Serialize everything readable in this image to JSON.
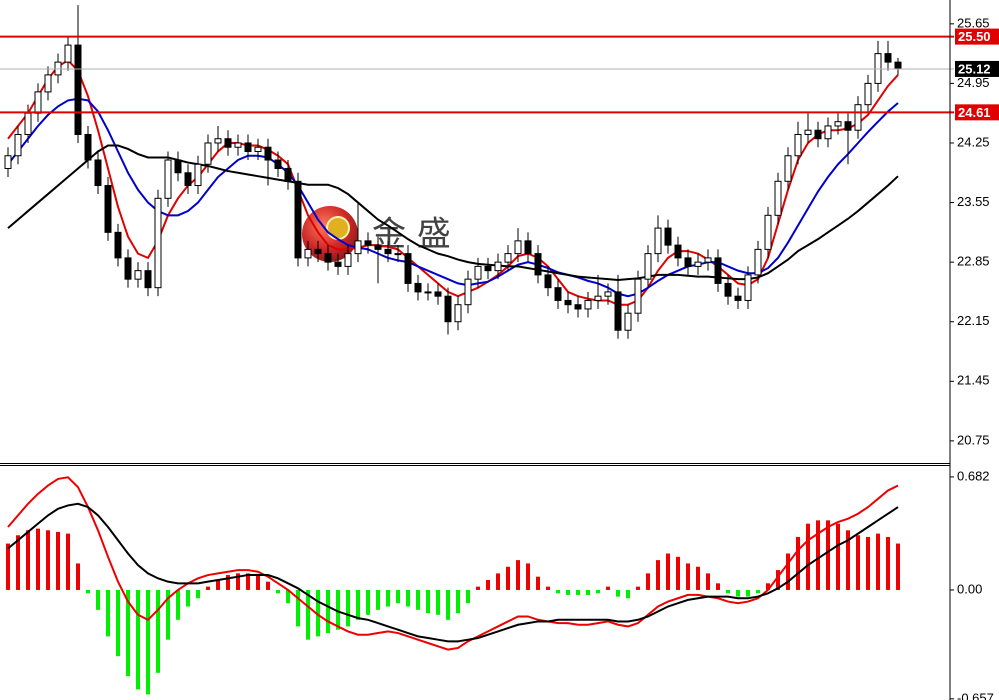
{
  "chart_data": [
    {
      "type": "candlestick",
      "open": [
        23.95,
        24.1,
        24.35,
        24.6,
        24.85,
        25.05,
        25.2,
        25.4,
        24.35,
        24.05,
        23.75,
        23.2,
        22.9,
        22.65,
        22.75,
        22.55,
        23.6,
        24.05,
        23.9,
        23.75,
        24.0,
        24.25,
        24.3,
        24.2,
        24.25,
        24.15,
        24.2,
        24.05,
        23.95,
        23.8,
        22.9,
        23.0,
        22.95,
        22.85,
        22.8,
        22.95,
        23.1,
        23.05,
        23.0,
        22.95,
        22.95,
        22.6,
        22.5,
        22.5,
        22.45,
        22.15,
        22.35,
        22.65,
        22.8,
        22.75,
        22.85,
        22.95,
        23.1,
        22.95,
        22.7,
        22.55,
        22.4,
        22.35,
        22.3,
        22.4,
        22.45,
        22.5,
        22.05,
        22.25,
        22.65,
        22.95,
        23.25,
        23.05,
        22.9,
        22.8,
        22.85,
        22.9,
        22.6,
        22.45,
        22.4,
        22.7,
        23.0,
        23.4,
        23.8,
        24.1,
        24.35,
        24.4,
        24.3,
        24.45,
        24.5,
        24.4,
        24.7,
        24.95,
        25.3,
        25.2
      ],
      "high": [
        24.2,
        24.45,
        24.7,
        24.95,
        25.15,
        25.3,
        25.5,
        25.87,
        24.45,
        24.15,
        23.85,
        23.3,
        23.0,
        22.85,
        22.85,
        23.7,
        24.15,
        24.15,
        24.0,
        24.1,
        24.35,
        24.45,
        24.4,
        24.35,
        24.35,
        24.3,
        24.3,
        24.15,
        24.05,
        23.9,
        23.1,
        23.1,
        23.05,
        22.95,
        23.05,
        23.55,
        23.2,
        23.15,
        23.1,
        23.05,
        23.05,
        22.7,
        22.6,
        22.6,
        22.55,
        22.45,
        22.75,
        22.9,
        22.9,
        22.95,
        23.05,
        23.25,
        23.2,
        23.05,
        22.8,
        22.65,
        22.5,
        22.45,
        22.5,
        22.7,
        22.6,
        22.7,
        22.35,
        22.75,
        23.05,
        23.4,
        23.35,
        23.15,
        23.0,
        22.95,
        23.0,
        23.0,
        22.7,
        22.55,
        22.8,
        23.1,
        23.5,
        23.9,
        24.2,
        24.5,
        24.6,
        24.5,
        24.55,
        24.6,
        24.6,
        24.8,
        25.05,
        25.45,
        25.45,
        25.25
      ],
      "low": [
        23.85,
        24.0,
        24.25,
        24.5,
        24.75,
        24.95,
        25.1,
        24.25,
        23.95,
        23.65,
        23.1,
        22.8,
        22.55,
        22.55,
        22.45,
        22.45,
        23.5,
        23.8,
        23.65,
        23.65,
        23.9,
        24.15,
        24.1,
        24.1,
        24.05,
        24.05,
        23.75,
        23.85,
        23.7,
        22.8,
        22.8,
        22.85,
        22.75,
        22.7,
        22.7,
        22.85,
        22.95,
        22.6,
        22.85,
        22.85,
        22.5,
        22.4,
        22.4,
        22.35,
        22.0,
        22.05,
        22.25,
        22.55,
        22.65,
        22.65,
        22.75,
        22.85,
        22.85,
        22.6,
        22.45,
        22.3,
        22.25,
        22.2,
        22.2,
        22.3,
        22.35,
        21.95,
        21.95,
        22.15,
        22.55,
        22.85,
        22.95,
        22.8,
        22.7,
        22.7,
        22.75,
        22.5,
        22.35,
        22.3,
        22.3,
        22.6,
        22.9,
        23.3,
        23.7,
        24.0,
        24.25,
        24.2,
        24.2,
        24.35,
        24.0,
        24.3,
        24.6,
        24.85,
        25.1,
        25.05
      ],
      "close": [
        24.1,
        24.35,
        24.6,
        24.85,
        25.05,
        25.2,
        25.4,
        24.35,
        24.05,
        23.75,
        23.2,
        22.9,
        22.65,
        22.75,
        22.55,
        23.6,
        24.05,
        23.9,
        23.75,
        24.0,
        24.25,
        24.3,
        24.2,
        24.25,
        24.15,
        24.2,
        24.05,
        23.95,
        23.8,
        22.9,
        23.0,
        22.95,
        22.85,
        22.8,
        22.95,
        23.1,
        23.05,
        23.0,
        22.95,
        22.95,
        22.6,
        22.5,
        22.5,
        22.45,
        22.15,
        22.35,
        22.65,
        22.8,
        22.75,
        22.85,
        22.95,
        23.1,
        22.95,
        22.7,
        22.55,
        22.4,
        22.35,
        22.3,
        22.4,
        22.45,
        22.5,
        22.05,
        22.25,
        22.65,
        22.95,
        23.25,
        23.05,
        22.9,
        22.8,
        22.85,
        22.9,
        22.6,
        22.45,
        22.4,
        22.7,
        23.0,
        23.4,
        23.8,
        24.1,
        24.35,
        24.4,
        24.3,
        24.45,
        24.5,
        24.4,
        24.7,
        24.95,
        25.3,
        25.2,
        25.12
      ],
      "up_color": "#ffffff",
      "down_color": "#000000",
      "overlays": [
        {
          "color": "#e00000",
          "values": [
            24.3,
            24.45,
            24.6,
            24.8,
            25.0,
            25.15,
            25.22,
            25.1,
            24.8,
            24.4,
            23.95,
            23.5,
            23.15,
            22.95,
            22.9,
            23.1,
            23.4,
            23.6,
            23.75,
            23.85,
            24.0,
            24.15,
            24.25,
            24.25,
            24.22,
            24.22,
            24.17,
            24.1,
            24.0,
            23.7,
            23.4,
            23.2,
            23.05,
            23.0,
            23.0,
            23.02,
            23.05,
            23.05,
            23.03,
            23.0,
            22.9,
            22.8,
            22.7,
            22.6,
            22.5,
            22.45,
            22.5,
            22.55,
            22.62,
            22.7,
            22.8,
            22.92,
            22.95,
            22.9,
            22.8,
            22.65,
            22.5,
            22.45,
            22.42,
            22.4,
            22.4,
            22.35,
            22.35,
            22.4,
            22.55,
            22.75,
            22.9,
            22.98,
            22.98,
            22.95,
            22.88,
            22.8,
            22.7,
            22.6,
            22.58,
            22.65,
            22.9,
            23.3,
            23.7,
            24.05,
            24.25,
            24.35,
            24.4,
            24.4,
            24.42,
            24.48,
            24.58,
            24.75,
            24.92,
            25.05
          ]
        },
        {
          "color": "#0000cc",
          "values": [
            24.0,
            24.15,
            24.3,
            24.45,
            24.58,
            24.68,
            24.75,
            24.77,
            24.75,
            24.62,
            24.4,
            24.15,
            23.9,
            23.7,
            23.55,
            23.45,
            23.4,
            23.4,
            23.45,
            23.55,
            23.7,
            23.85,
            23.95,
            24.05,
            24.1,
            24.1,
            24.08,
            24.0,
            23.9,
            23.75,
            23.55,
            23.35,
            23.2,
            23.12,
            23.05,
            23.02,
            23.0,
            22.95,
            22.9,
            22.87,
            22.85,
            22.8,
            22.75,
            22.7,
            22.65,
            22.6,
            22.58,
            22.6,
            22.62,
            22.68,
            22.75,
            22.82,
            22.85,
            22.82,
            22.78,
            22.73,
            22.7,
            22.67,
            22.63,
            22.6,
            22.55,
            22.48,
            22.45,
            22.48,
            22.55,
            22.63,
            22.7,
            22.75,
            22.8,
            22.82,
            22.85,
            22.85,
            22.8,
            22.75,
            22.72,
            22.72,
            22.78,
            22.9,
            23.08,
            23.28,
            23.48,
            23.68,
            23.85,
            24.0,
            24.12,
            24.25,
            24.38,
            24.5,
            24.62,
            24.72
          ]
        },
        {
          "color": "#000000",
          "values": [
            23.25,
            23.35,
            23.45,
            23.55,
            23.65,
            23.75,
            23.85,
            23.95,
            24.05,
            24.15,
            24.22,
            24.22,
            24.18,
            24.12,
            24.08,
            24.08,
            24.08,
            24.05,
            24.02,
            24.0,
            23.98,
            23.95,
            23.92,
            23.9,
            23.88,
            23.86,
            23.84,
            23.82,
            23.8,
            23.78,
            23.76,
            23.76,
            23.76,
            23.72,
            23.65,
            23.55,
            23.45,
            23.35,
            23.28,
            23.2,
            23.12,
            23.05,
            23.0,
            22.95,
            22.92,
            22.88,
            22.85,
            22.83,
            22.82,
            22.81,
            22.8,
            22.8,
            22.78,
            22.76,
            22.74,
            22.72,
            22.7,
            22.68,
            22.67,
            22.66,
            22.65,
            22.64,
            22.65,
            22.66,
            22.68,
            22.7,
            22.7,
            22.7,
            22.69,
            22.68,
            22.68,
            22.67,
            22.66,
            22.65,
            22.65,
            22.67,
            22.72,
            22.8,
            22.88,
            22.98,
            23.05,
            23.12,
            23.2,
            23.28,
            23.36,
            23.45,
            23.55,
            23.65,
            23.75,
            23.86
          ]
        }
      ],
      "ylim": [
        20.49,
        25.93
      ],
      "yticks": [
        25.65,
        24.95,
        24.25,
        23.55,
        22.85,
        22.15,
        21.45,
        20.75
      ],
      "price_lines": [
        {
          "value": 25.5,
          "label": "25.50",
          "color": "#e00000"
        },
        {
          "value": 25.12,
          "color": "#000000"
        },
        {
          "value": 24.61,
          "color": "#e00000"
        }
      ],
      "watermark": "金 盛"
    },
    {
      "type": "macd",
      "histogram": {
        "up_color": "#ee0000",
        "down_color": "#00ee00",
        "values": [
          0.28,
          0.33,
          0.36,
          0.37,
          0.36,
          0.35,
          0.34,
          0.16,
          -0.02,
          -0.12,
          -0.28,
          -0.4,
          -0.52,
          -0.6,
          -0.63,
          -0.5,
          -0.3,
          -0.18,
          -0.1,
          -0.05,
          0.02,
          0.06,
          0.09,
          0.1,
          0.1,
          0.09,
          0.05,
          -0.02,
          -0.08,
          -0.22,
          -0.3,
          -0.28,
          -0.26,
          -0.24,
          -0.22,
          -0.18,
          -0.15,
          -0.12,
          -0.1,
          -0.08,
          -0.1,
          -0.12,
          -0.14,
          -0.15,
          -0.18,
          -0.14,
          -0.08,
          0.02,
          0.06,
          0.1,
          0.14,
          0.18,
          0.16,
          0.08,
          0.02,
          -0.02,
          -0.03,
          -0.03,
          -0.03,
          -0.02,
          0.02,
          -0.04,
          -0.05,
          0.02,
          0.1,
          0.18,
          0.22,
          0.2,
          0.16,
          0.14,
          0.1,
          0.04,
          -0.02,
          -0.04,
          -0.04,
          -0.02,
          0.04,
          0.12,
          0.22,
          0.32,
          0.4,
          0.42,
          0.42,
          0.4,
          0.36,
          0.33,
          0.32,
          0.34,
          0.32,
          0.28
        ]
      },
      "lines": [
        {
          "color": "#ee0000",
          "values": [
            0.38,
            0.45,
            0.52,
            0.58,
            0.63,
            0.67,
            0.68,
            0.62,
            0.5,
            0.36,
            0.2,
            0.05,
            -0.07,
            -0.15,
            -0.18,
            -0.12,
            -0.05,
            0.0,
            0.04,
            0.07,
            0.09,
            0.1,
            0.11,
            0.12,
            0.12,
            0.11,
            0.08,
            0.04,
            0.0,
            -0.05,
            -0.1,
            -0.15,
            -0.19,
            -0.22,
            -0.25,
            -0.27,
            -0.27,
            -0.26,
            -0.25,
            -0.26,
            -0.28,
            -0.3,
            -0.32,
            -0.34,
            -0.36,
            -0.35,
            -0.31,
            -0.28,
            -0.25,
            -0.22,
            -0.19,
            -0.16,
            -0.16,
            -0.18,
            -0.19,
            -0.2,
            -0.2,
            -0.21,
            -0.21,
            -0.2,
            -0.19,
            -0.21,
            -0.22,
            -0.2,
            -0.15,
            -0.1,
            -0.07,
            -0.05,
            -0.03,
            -0.03,
            -0.04,
            -0.05,
            -0.07,
            -0.08,
            -0.07,
            -0.05,
            0.0,
            0.08,
            0.16,
            0.24,
            0.3,
            0.34,
            0.38,
            0.41,
            0.43,
            0.46,
            0.5,
            0.55,
            0.6,
            0.63
          ]
        },
        {
          "color": "#000000",
          "values": [
            0.25,
            0.3,
            0.35,
            0.4,
            0.45,
            0.49,
            0.51,
            0.52,
            0.5,
            0.45,
            0.38,
            0.3,
            0.22,
            0.15,
            0.1,
            0.07,
            0.05,
            0.04,
            0.04,
            0.04,
            0.05,
            0.06,
            0.07,
            0.08,
            0.09,
            0.09,
            0.09,
            0.07,
            0.04,
            0.01,
            -0.03,
            -0.07,
            -0.1,
            -0.13,
            -0.15,
            -0.17,
            -0.18,
            -0.2,
            -0.22,
            -0.24,
            -0.26,
            -0.28,
            -0.29,
            -0.3,
            -0.31,
            -0.31,
            -0.3,
            -0.29,
            -0.27,
            -0.25,
            -0.23,
            -0.21,
            -0.2,
            -0.19,
            -0.19,
            -0.18,
            -0.18,
            -0.18,
            -0.18,
            -0.18,
            -0.18,
            -0.19,
            -0.19,
            -0.18,
            -0.16,
            -0.13,
            -0.1,
            -0.08,
            -0.06,
            -0.05,
            -0.04,
            -0.04,
            -0.04,
            -0.05,
            -0.05,
            -0.04,
            -0.02,
            0.01,
            0.05,
            0.1,
            0.15,
            0.19,
            0.23,
            0.27,
            0.3,
            0.34,
            0.38,
            0.42,
            0.46,
            0.5
          ]
        }
      ],
      "ylim": [
        -0.664,
        0.754
      ],
      "yticks": [
        0.682,
        {
          "value": 0,
          "label": "0.00"
        },
        -0.657
      ]
    }
  ]
}
